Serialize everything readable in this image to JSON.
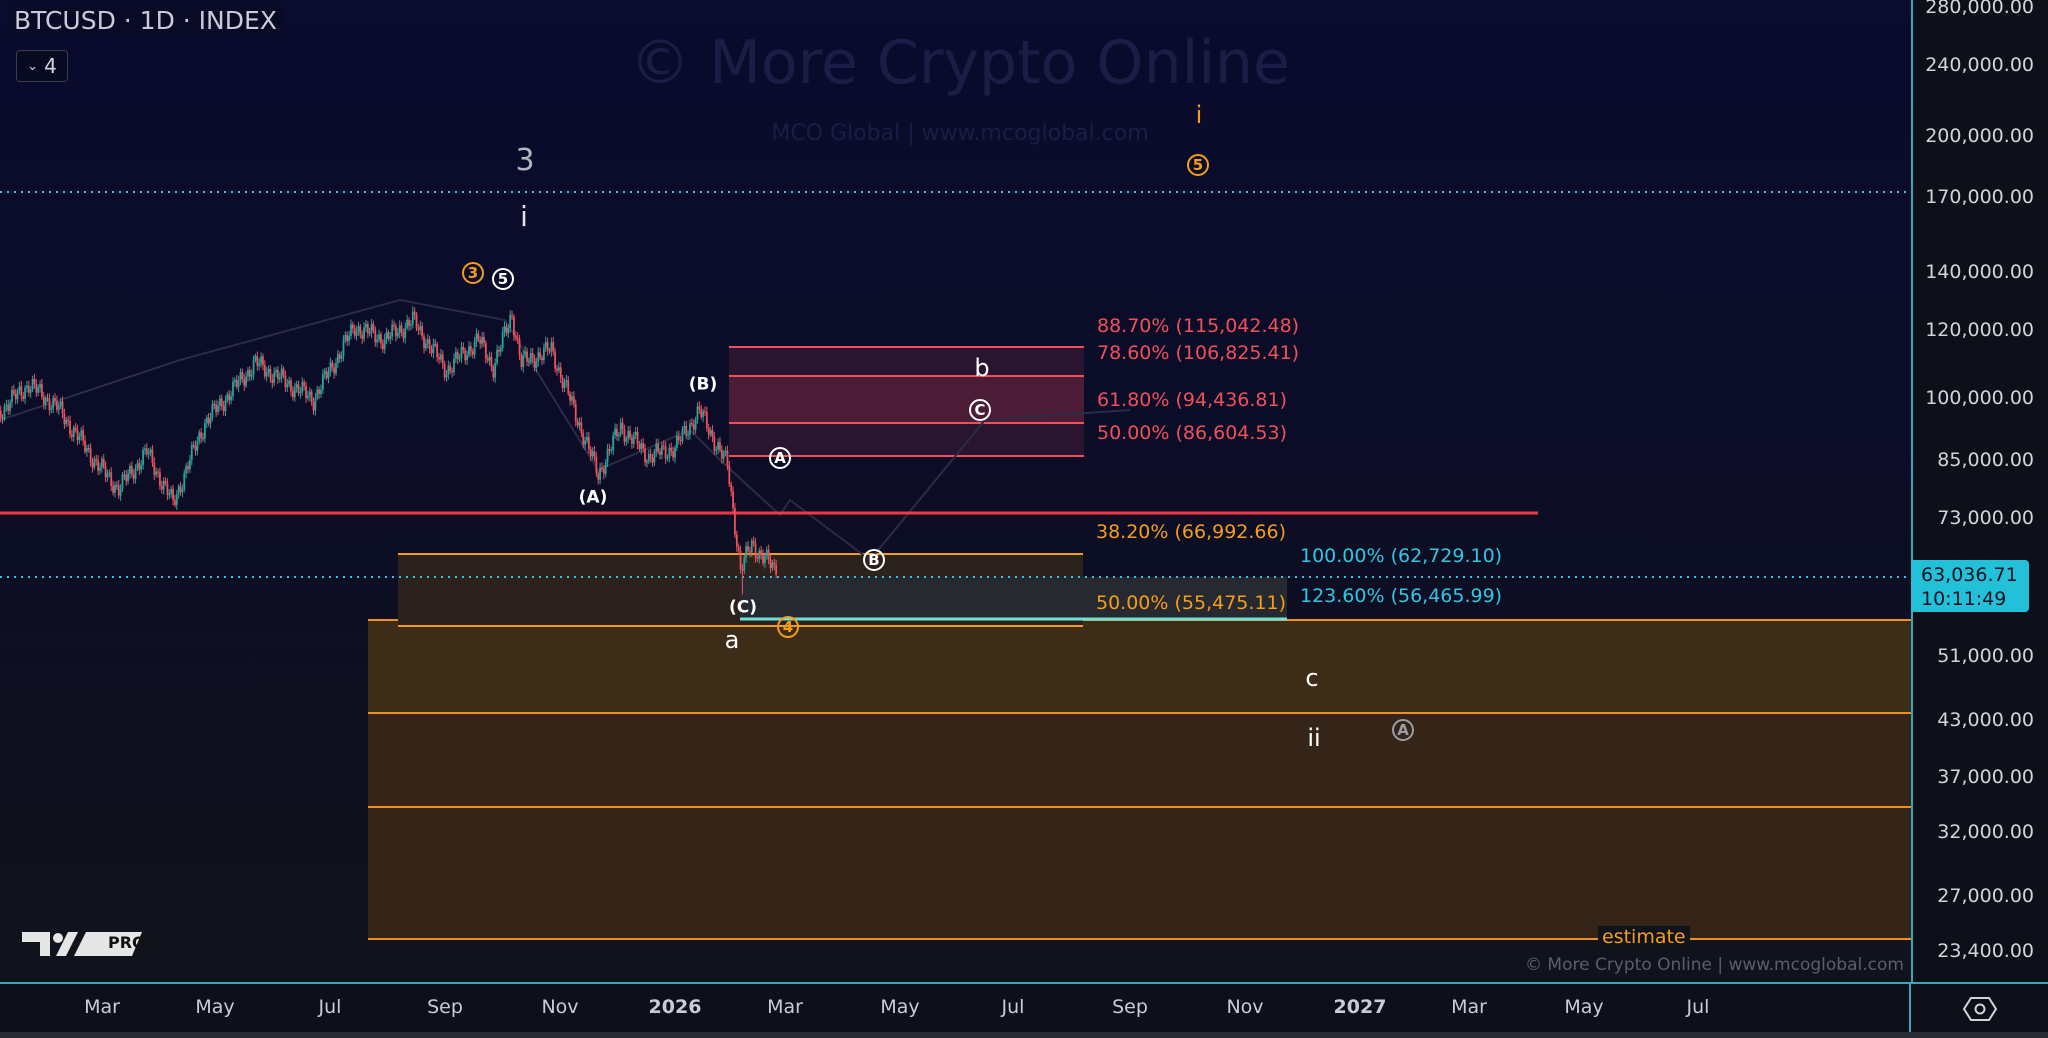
{
  "header": {
    "title": "BTCUSD · 1D · INDEX",
    "indicator_count": "4"
  },
  "watermark": {
    "main": "© More Crypto Online",
    "sub": "MCO Global  |  www.mcoglobal.com",
    "footer": "© More Crypto Online  |  www.mcoglobal.com",
    "logo_text": "PRO"
  },
  "price_axis": [
    "280,000.00",
    "240,000.00",
    "200,000.00",
    "170,000.00",
    "140,000.00",
    "120,000.00",
    "100,000.00",
    "85,000.00",
    "73,000.00",
    "51,000.00",
    "43,000.00",
    "37,000.00",
    "32,000.00",
    "27,000.00",
    "23,400.00"
  ],
  "current_price": {
    "value": "63,036.71",
    "countdown": "10:11:49"
  },
  "time_axis": [
    {
      "label": "Mar",
      "bold": false
    },
    {
      "label": "May",
      "bold": false
    },
    {
      "label": "Jul",
      "bold": false
    },
    {
      "label": "Sep",
      "bold": false
    },
    {
      "label": "Nov",
      "bold": false
    },
    {
      "label": "2026",
      "bold": true
    },
    {
      "label": "Mar",
      "bold": false
    },
    {
      "label": "May",
      "bold": false
    },
    {
      "label": "Jul",
      "bold": false
    },
    {
      "label": "Sep",
      "bold": false
    },
    {
      "label": "Nov",
      "bold": false
    },
    {
      "label": "2027",
      "bold": true
    },
    {
      "label": "Mar",
      "bold": false
    },
    {
      "label": "May",
      "bold": false
    },
    {
      "label": "Jul",
      "bold": false
    }
  ],
  "fib_red": [
    "88.70% (115,042.48)",
    "78.60% (106,825.41)",
    "61.80% (94,436.81)",
    "50.00% (86,604.53)"
  ],
  "fib_orange": [
    "38.20% (66,992.66)",
    "50.00% (55,475.11)"
  ],
  "fib_cyan": [
    "100.00% (62,729.10)",
    "123.60% (56,465.99)"
  ],
  "estimate_label": "estimate",
  "waves": {
    "three": "3",
    "i_white": "i",
    "circ3_orange": "3",
    "circ5_white": "5",
    "A_paren": "(A)",
    "B_paren": "(B)",
    "C_paren": "(C)",
    "a": "a",
    "circ4_orange": "4",
    "circA": "A",
    "circB": "B",
    "circC": "C",
    "b": "b",
    "i_orange": "i",
    "circ5_orange": "5",
    "c": "c",
    "ii": "ii",
    "circA_grey": "A"
  },
  "colors": {
    "up": "#26a69a",
    "down": "#f0505c",
    "fib_red": "#f0505c",
    "fib_orange": "#f59d1b",
    "fib_cyan": "#2fc7e3",
    "support": "#f23645"
  },
  "chart_data": {
    "type": "candlestick",
    "title": "BTCUSD · 1D · INDEX",
    "yscale": "log",
    "ylim": [
      22000,
      290000
    ],
    "xlim": [
      "2025-01-06",
      "2027-08-15"
    ],
    "key_closes": [
      [
        "2025-01-06",
        97000
      ],
      [
        "2025-01-21",
        104000
      ],
      [
        "2025-02-05",
        98000
      ],
      [
        "2025-02-27",
        84000
      ],
      [
        "2025-03-10",
        79000
      ],
      [
        "2025-03-25",
        87000
      ],
      [
        "2025-04-08",
        76000
      ],
      [
        "2025-04-25",
        94000
      ],
      [
        "2025-05-22",
        110000
      ],
      [
        "2025-06-22",
        100000
      ],
      [
        "2025-07-14",
        121000
      ],
      [
        "2025-07-30",
        117000
      ],
      [
        "2025-08-14",
        123000
      ],
      [
        "2025-09-01",
        108000
      ],
      [
        "2025-09-18",
        117000
      ],
      [
        "2025-09-26",
        109000
      ],
      [
        "2025-10-06",
        125000
      ],
      [
        "2025-10-11",
        110000
      ],
      [
        "2025-10-27",
        114000
      ],
      [
        "2025-11-21",
        82000
      ],
      [
        "2025-12-03",
        93000
      ],
      [
        "2025-12-18",
        86000
      ],
      [
        "2026-01-01",
        88000
      ],
      [
        "2026-01-14",
        97000
      ],
      [
        "2026-01-29",
        84000
      ],
      [
        "2026-02-05",
        64000
      ],
      [
        "2026-02-11",
        68000
      ],
      [
        "2026-02-18",
        66000
      ],
      [
        "2026-02-24",
        63036.71
      ]
    ],
    "horizontal_levels": [
      73000,
      172000
    ],
    "fib_levels": {
      "red": [
        115042.48,
        106825.41,
        94436.81,
        86604.53
      ],
      "orange": [
        66992.66,
        55475.11
      ],
      "cyan": [
        62729.1,
        56465.99
      ]
    },
    "target_zone": {
      "top": 56000,
      "mid1": 43500,
      "mid2": 34500,
      "bottom": 24500
    }
  }
}
